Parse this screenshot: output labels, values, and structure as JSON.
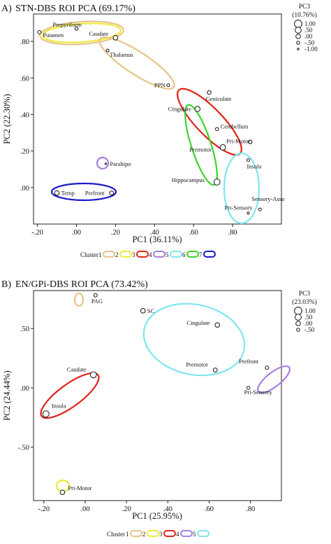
{
  "chart_data": [
    {
      "type": "scatter",
      "panel": "A)",
      "title": "STN-DBS ROI PCA (69.17%)",
      "xlabel": "PC1 (36.11%)",
      "ylabel": "PC2 (22.30%)",
      "xlim": [
        -0.22,
        1.05
      ],
      "ylim": [
        -0.2,
        0.95
      ],
      "xticks": [
        "-.20",
        ".00",
        ".20",
        ".40",
        ".60",
        ".80"
      ],
      "xtick_values": [
        -0.2,
        0.0,
        0.2,
        0.4,
        0.6,
        0.8
      ],
      "yticks": [
        ".00",
        ".20",
        ".40",
        ".60",
        ".80"
      ],
      "ytick_values": [
        0.0,
        0.2,
        0.4,
        0.6,
        0.8
      ],
      "size_legend": {
        "title": "PC3",
        "subtitle": "(10.76%)",
        "entries": [
          {
            "label": "1.00",
            "value": 1.0
          },
          {
            "label": ".50",
            "value": 0.5
          },
          {
            "label": ".00",
            "value": 0.0
          },
          {
            "label": "-.50",
            "value": -0.5
          },
          {
            "label": "-1.00",
            "value": -1.0
          }
        ]
      },
      "cluster_legend": {
        "title": "Cluster",
        "entries": [
          {
            "label": "1",
            "color": "#e8c48a"
          },
          {
            "label": "2",
            "color": "#ecec3a"
          },
          {
            "label": "3",
            "color": "#e0261b"
          },
          {
            "label": "4",
            "color": "#a77fe0"
          },
          {
            "label": "5",
            "color": "#7fe6ee"
          },
          {
            "label": "6",
            "color": "#3bd42b"
          },
          {
            "label": "7",
            "color": "#1b19c8"
          }
        ]
      },
      "points": [
        {
          "label": "Prepyriform",
          "x": 0.0,
          "y": 0.87,
          "pc3": -0.5
        },
        {
          "label": "Putamen",
          "x": -0.19,
          "y": 0.85,
          "pc3": -0.4
        },
        {
          "label": "Caudate",
          "x": 0.2,
          "y": 0.82,
          "pc3": 0.0
        },
        {
          "label": "Thalamus",
          "x": 0.16,
          "y": 0.75,
          "pc3": -0.6
        },
        {
          "label": "PPN",
          "x": 0.47,
          "y": 0.56,
          "pc3": -0.6
        },
        {
          "label": "Geniculate",
          "x": 0.68,
          "y": 0.52,
          "pc3": -0.3
        },
        {
          "label": "Cingulate",
          "x": 0.62,
          "y": 0.43,
          "pc3": 0.2
        },
        {
          "label": "Cerebellum",
          "x": 0.72,
          "y": 0.32,
          "pc3": -0.5
        },
        {
          "label": "Pri-Motor",
          "x": 0.89,
          "y": 0.25,
          "pc3": -0.3
        },
        {
          "label": "Premotor",
          "x": 0.75,
          "y": 0.22,
          "pc3": 0.3
        },
        {
          "label": "Insula",
          "x": 0.88,
          "y": 0.15,
          "pc3": -0.6
        },
        {
          "label": "Parahipo",
          "x": 0.15,
          "y": 0.13,
          "pc3": -1.0
        },
        {
          "label": "Hippocampus",
          "x": 0.72,
          "y": 0.03,
          "pc3": 0.5
        },
        {
          "label": "Temp",
          "x": -0.1,
          "y": -0.03,
          "pc3": 0.0
        },
        {
          "label": "Prefront",
          "x": 0.18,
          "y": -0.03,
          "pc3": -0.2
        },
        {
          "label": "Pri-Sensory",
          "x": 0.88,
          "y": -0.14,
          "pc3": -0.8
        },
        {
          "label": "Sensory-Asso",
          "x": 0.94,
          "y": -0.12,
          "pc3": -0.6
        }
      ]
    },
    {
      "type": "scatter",
      "panel": "B)",
      "title": "EN/GPi-DBS ROI PCA (73.42%)",
      "xlabel": "PC1 (25.95%)",
      "ylabel": "PC2 (24.44%)",
      "xlim": [
        -0.25,
        0.95
      ],
      "ylim": [
        -0.95,
        0.82
      ],
      "xticks": [
        "-.20",
        ".00",
        ".20",
        ".40",
        ".60",
        ".80"
      ],
      "xtick_values": [
        -0.2,
        0.0,
        0.2,
        0.4,
        0.6,
        0.8
      ],
      "yticks": [
        ".50",
        ".00",
        "-.50"
      ],
      "ytick_values": [
        0.5,
        0.0,
        -0.5
      ],
      "size_legend": {
        "title": "PC3",
        "subtitle": "(23.03%)",
        "entries": [
          {
            "label": "1.00",
            "value": 1.0
          },
          {
            "label": ".50",
            "value": 0.5
          },
          {
            "label": ".00",
            "value": 0.0
          },
          {
            "label": "-.50",
            "value": -0.5
          }
        ]
      },
      "cluster_legend": {
        "title": "Cluster",
        "entries": [
          {
            "label": "1",
            "color": "#e8c48a"
          },
          {
            "label": "2",
            "color": "#ecec3a"
          },
          {
            "label": "3",
            "color": "#e0261b"
          },
          {
            "label": "4",
            "color": "#a77fe0"
          },
          {
            "label": "5",
            "color": "#7fe6ee"
          }
        ]
      },
      "points": [
        {
          "label": "PAG",
          "x": 0.05,
          "y": 0.78,
          "pc3": -0.4
        },
        {
          "label": "SC",
          "x": 0.28,
          "y": 0.65,
          "pc3": 0.0
        },
        {
          "label": "Cingulate",
          "x": 0.64,
          "y": 0.53,
          "pc3": 0.0
        },
        {
          "label": "Premotor",
          "x": 0.63,
          "y": 0.15,
          "pc3": -0.2
        },
        {
          "label": "Prefront",
          "x": 0.88,
          "y": 0.17,
          "pc3": -0.4
        },
        {
          "label": "Pri-Sensory",
          "x": 0.79,
          "y": 0.0,
          "pc3": -0.5
        },
        {
          "label": "Caudate",
          "x": 0.04,
          "y": 0.11,
          "pc3": 0.5
        },
        {
          "label": "Insula",
          "x": -0.19,
          "y": -0.22,
          "pc3": 0.6
        },
        {
          "label": "Pri-Motor",
          "x": -0.11,
          "y": -0.88,
          "pc3": 0.0
        }
      ]
    }
  ]
}
